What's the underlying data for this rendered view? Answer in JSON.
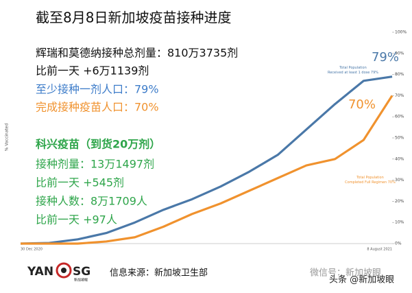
{
  "chart_data": {
    "type": "line",
    "title": "截至8月8日新加坡疫苗接种进度",
    "y_label": "% Vaccinated",
    "categories": [
      "30 Dec 2020",
      null,
      null,
      null,
      null,
      null,
      null,
      null,
      null,
      null,
      null,
      null,
      null,
      "8 August 2021"
    ],
    "series": [
      {
        "name": "Total Population Received at least 1 dose 79%",
        "color": "#4a78a8",
        "values": [
          0,
          0.3,
          2,
          5,
          10,
          16,
          21,
          27,
          34,
          42,
          54,
          66,
          77,
          79
        ],
        "end_label": "79%"
      },
      {
        "name": "Total Population Completed Full Regimen 70%",
        "color": "#f0922e",
        "values": [
          0,
          0,
          0,
          1,
          3,
          8,
          14,
          19,
          25,
          31,
          37,
          40,
          49,
          70
        ],
        "end_label": "70%"
      }
    ],
    "ylim": [
      0,
      100
    ],
    "yticks": [
      {
        "value": 0,
        "label": "0%"
      },
      {
        "value": 10,
        "label": "10%"
      },
      {
        "value": 20,
        "label": "20%"
      },
      {
        "value": 30,
        "label": "30%"
      },
      {
        "value": 40,
        "label": "40%"
      },
      {
        "value": 50,
        "label": "50%"
      },
      {
        "value": 60,
        "label": "60%"
      },
      {
        "value": 70,
        "label": "70%"
      },
      {
        "value": 80,
        "label": "80%"
      },
      {
        "value": 90,
        "label": "90%"
      },
      {
        "value": 100,
        "label": "100%"
      }
    ],
    "annotations": [
      {
        "text": "辉瑞和莫德纳接种总剂量：810万3735剂",
        "color": "#111111"
      },
      {
        "text": "比前一天 +6万1139剂",
        "color": "#111111"
      },
      {
        "text": "至少接种一剂人口：79%",
        "color": "#3d7cc9"
      },
      {
        "text": "完成接种疫苗人口：70%",
        "color": "#f0922e"
      },
      {
        "text": "科兴疫苗（到货20万剂）",
        "color": "#2ea54a"
      },
      {
        "text": "接种剂量：13万1497剂",
        "color": "#2ea54a"
      },
      {
        "text": "比前一天 +545剂",
        "color": "#2ea54a"
      },
      {
        "text": "接种人数：8万1709人",
        "color": "#2ea54a"
      },
      {
        "text": "比前一天 +97人",
        "color": "#2ea54a"
      }
    ]
  },
  "footer": {
    "logo_left": "YAN",
    "logo_right": "SG",
    "logo_sub": "新加坡眼",
    "source": "信息来源：新加坡卫生部",
    "watermark": "微信号：新加坡眼",
    "watermark2": "头条 @新加坡眼"
  }
}
